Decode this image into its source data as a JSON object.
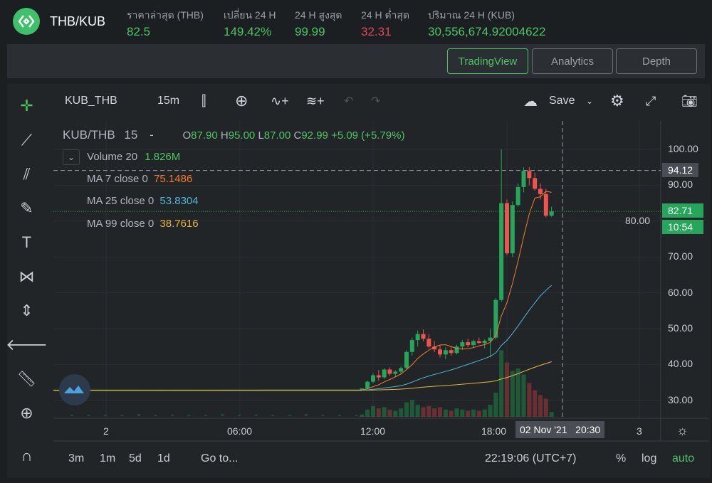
{
  "header": {
    "pair": "THB/KUB",
    "stats": [
      {
        "label": "ราคาล่าสุด (THB)",
        "value": "82.5",
        "color": "#4cc463"
      },
      {
        "label": "เปลี่ยน 24 H",
        "value": "149.42%",
        "color": "#4cc463"
      },
      {
        "label": "24 H สูงสุด",
        "value": "99.99",
        "color": "#4cc463"
      },
      {
        "label": "24 H ต่ำสุด",
        "value": "32.31",
        "color": "#e0475a"
      },
      {
        "label": "ปริมาณ 24 H (KUB)",
        "value": "30,556,674.92004622",
        "color": "#4cc463"
      }
    ]
  },
  "tabs": [
    {
      "label": "TradingView",
      "active": true
    },
    {
      "label": "Analytics"
    },
    {
      "label": "Depth"
    }
  ],
  "toolbar": {
    "symbol": "KUB_THB",
    "interval": "15m",
    "save": "Save"
  },
  "legend": {
    "title": "KUB/THB",
    "interval": "15",
    "dash": "-",
    "o_lbl": "O",
    "o": "87.90",
    "h_lbl": "H",
    "h": "95.00",
    "l_lbl": "L",
    "l": "87.00",
    "c_lbl": "C",
    "c": "92.99",
    "chg": "+5.09 (+5.79%)",
    "volume": "Volume 20",
    "volume_val": "1.826M",
    "ma7": "MA 7 close 0",
    "ma7_val": "75.1486",
    "ma25": "MA 25 close 0",
    "ma25_val": "53.8304",
    "ma99": "MA 99 close 0",
    "ma99_val": "38.7616"
  },
  "price_axis": {
    "ticks": [
      "100.00",
      "90.00",
      "80.00",
      "70.00",
      "60.00",
      "50.00",
      "40.00",
      "30.00"
    ],
    "crosshair": "94.12",
    "last": "82.71",
    "countdown": "10:54"
  },
  "time_axis": {
    "ticks": [
      "2",
      "06:00",
      "12:00",
      "18:00",
      "3"
    ],
    "crosshair": "02 Nov '21   20:30"
  },
  "bottom": {
    "ranges": [
      "3m",
      "1m",
      "5d",
      "1d"
    ],
    "goto": "Go to...",
    "clock": "22:19:06 (UTC+7)",
    "pct": "%",
    "log": "log",
    "auto": "auto"
  },
  "colors": {
    "up": "#26a65b",
    "down": "#ef5350",
    "ma7": "#f57c28",
    "ma25": "#4fb8d0",
    "ma99": "#e6b63d",
    "accent": "#4cc463"
  },
  "chart_data": {
    "type": "candlestick",
    "flat_price": 32.8,
    "start_time": "11:30",
    "interval_min": 15,
    "ylim": [
      26,
      102
    ],
    "candles": [
      [
        32.8,
        33.4,
        32.6,
        33.3
      ],
      [
        33.3,
        35.5,
        33.2,
        35.2
      ],
      [
        35.2,
        37.5,
        34.8,
        37.0
      ],
      [
        37.0,
        38.5,
        35.5,
        36.4
      ],
      [
        36.4,
        39.0,
        36.0,
        38.6
      ],
      [
        38.6,
        39.2,
        36.8,
        37.4
      ],
      [
        37.4,
        38.4,
        36.5,
        38.0
      ],
      [
        38.0,
        39.5,
        37.2,
        39.0
      ],
      [
        39.0,
        44.0,
        38.5,
        43.5
      ],
      [
        43.5,
        47.5,
        42.5,
        46.8
      ],
      [
        46.8,
        49.5,
        45.0,
        48.5
      ],
      [
        48.5,
        49.8,
        46.5,
        47.2
      ],
      [
        47.2,
        48.5,
        44.5,
        45.0
      ],
      [
        45.0,
        46.5,
        43.5,
        44.2
      ],
      [
        44.2,
        45.5,
        42.0,
        42.8
      ],
      [
        42.8,
        44.8,
        41.5,
        44.0
      ],
      [
        44.0,
        45.0,
        42.5,
        43.2
      ],
      [
        43.2,
        45.5,
        42.8,
        45.0
      ],
      [
        45.0,
        46.8,
        44.0,
        46.2
      ],
      [
        46.2,
        47.2,
        44.8,
        45.4
      ],
      [
        45.4,
        47.0,
        44.8,
        46.5
      ],
      [
        46.5,
        47.5,
        45.8,
        46.0
      ],
      [
        46.0,
        47.0,
        44.5,
        46.6
      ],
      [
        46.6,
        50.0,
        42.0,
        47.5
      ],
      [
        47.5,
        58.5,
        47.0,
        58.0
      ],
      [
        58.0,
        100.0,
        57.5,
        85.0
      ],
      [
        85.0,
        86.0,
        70.5,
        71.0
      ],
      [
        71.0,
        85.5,
        70.0,
        84.5
      ],
      [
        84.5,
        90.5,
        84.0,
        89.5
      ],
      [
        89.5,
        95.0,
        88.0,
        94.0
      ],
      [
        94.0,
        95.0,
        90.0,
        92.0
      ],
      [
        92.0,
        93.5,
        88.5,
        89.0
      ],
      [
        89.0,
        90.5,
        86.0,
        87.5
      ],
      [
        87.5,
        89.0,
        81.0,
        81.5
      ],
      [
        81.5,
        84.0,
        81.2,
        82.7
      ]
    ],
    "volume": [
      2,
      6,
      9,
      7,
      8,
      6,
      5,
      7,
      12,
      14,
      10,
      8,
      9,
      7,
      8,
      6,
      5,
      7,
      6,
      5,
      6,
      5,
      6,
      10,
      20,
      55,
      45,
      38,
      40,
      35,
      28,
      22,
      18,
      15,
      4
    ]
  }
}
